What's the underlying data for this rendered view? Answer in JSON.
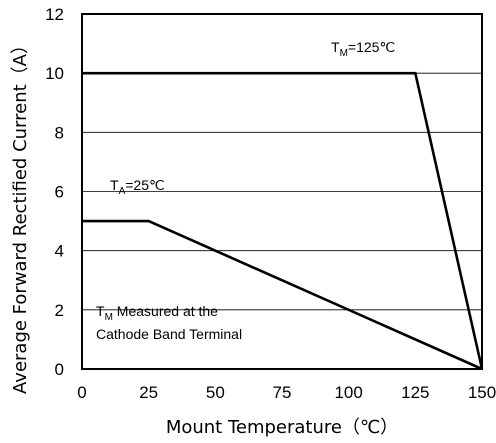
{
  "chart_data": {
    "type": "line",
    "xlabel": "Mount Temperature（℃）",
    "ylabel": "Average Forward Rectified Current（A）",
    "xlim": [
      0,
      150
    ],
    "ylim": [
      0,
      12
    ],
    "x_ticks": [
      "0",
      "25",
      "50",
      "75",
      "100",
      "125",
      "150"
    ],
    "y_ticks": [
      "0",
      "2",
      "4",
      "6",
      "8",
      "10",
      "12"
    ],
    "grid": true,
    "series": [
      {
        "name": "TM=125℃",
        "x": [
          0,
          125,
          150
        ],
        "y": [
          10,
          10,
          0
        ]
      },
      {
        "name": "TA=25℃",
        "x": [
          0,
          25,
          150
        ],
        "y": [
          5,
          5,
          0
        ]
      }
    ],
    "annotations": {
      "tm_label": {
        "main": "T",
        "sub": "M",
        "rest": "=125℃"
      },
      "ta_label": {
        "main": "T",
        "sub": "A",
        "rest": "=25℃"
      },
      "note_line1": {
        "main": "T",
        "sub": "M",
        "rest": " Measured at the"
      },
      "note_line2": "Cathode Band Terminal"
    }
  }
}
